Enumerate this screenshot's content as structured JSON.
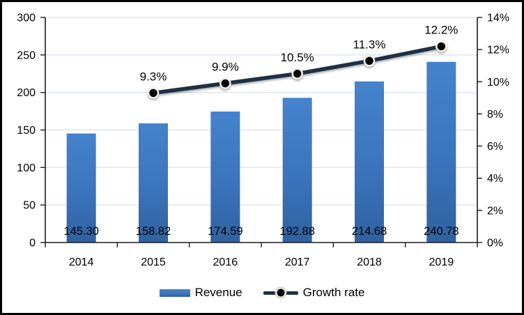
{
  "chart_data": {
    "type": "bar",
    "subtype": "bar-line-combo",
    "title": "",
    "categories": [
      "2014",
      "2015",
      "2016",
      "2017",
      "2018",
      "2019"
    ],
    "series": [
      {
        "name": "Revenue",
        "kind": "bar",
        "axis": "left",
        "values": [
          145.3,
          158.82,
          174.59,
          192.88,
          214.68,
          240.78
        ],
        "labels": [
          "145.30",
          "158.82",
          "174.59",
          "192.88",
          "214.68",
          "240.78"
        ]
      },
      {
        "name": "Growth rate",
        "kind": "line",
        "axis": "right",
        "values": [
          null,
          9.3,
          9.9,
          10.5,
          11.3,
          12.2
        ],
        "labels": [
          "",
          "9.3%",
          "9.9%",
          "10.5%",
          "11.3%",
          "12.2%"
        ]
      }
    ],
    "left_axis": {
      "min": 0,
      "max": 300,
      "step": 50,
      "tick_labels": [
        "0",
        "50",
        "100",
        "150",
        "200",
        "250",
        "300"
      ]
    },
    "right_axis": {
      "min": 0,
      "max": 14,
      "step": 2,
      "tick_labels": [
        "0%",
        "2%",
        "4%",
        "6%",
        "8%",
        "10%",
        "12%",
        "14%"
      ]
    },
    "grid": true,
    "legend_position": "bottom",
    "colors": {
      "bar_top": "#4583cd",
      "bar_bottom": "#2f619f",
      "line": "#1f3044",
      "marker_fill": "#000000",
      "marker_stroke": "#f2efe8",
      "gridline": "#dbe5f1",
      "axis": "#1a1a1a",
      "text": "#000000",
      "frame_border": "#000000"
    }
  }
}
